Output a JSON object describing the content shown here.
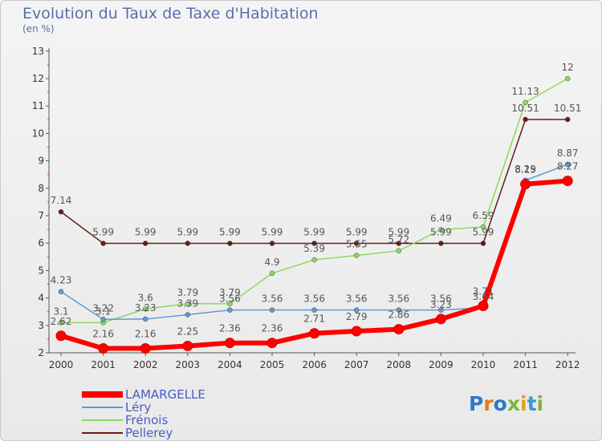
{
  "title": "Evolution du Taux de Taxe d'Habitation",
  "unit": "(en %)",
  "logo": "Proxiti",
  "chart_data": {
    "type": "line",
    "x": [
      "2000",
      "2001",
      "2002",
      "2003",
      "2004",
      "2005",
      "2006",
      "2007",
      "2008",
      "2009",
      "2010",
      "2011",
      "2012"
    ],
    "ylim": [
      2,
      13
    ],
    "yticks": [
      2,
      3,
      4,
      5,
      6,
      7,
      8,
      9,
      10,
      11,
      12,
      13
    ],
    "grid": false,
    "legend": "bottom-left",
    "series": [
      {
        "name": "LAMARGELLE",
        "color": "#ff0000",
        "values": [
          2.62,
          2.16,
          2.16,
          2.25,
          2.36,
          2.36,
          2.71,
          2.79,
          2.86,
          3.23,
          3.71,
          8.15,
          8.27
        ],
        "labels": [
          "2.62",
          "2.16",
          "2.16",
          "2.25",
          "2.36",
          "2.36",
          "2.71",
          "2.79",
          "2.86",
          "3.23",
          "3.71",
          "8.15",
          "8.27"
        ]
      },
      {
        "name": "Léry",
        "color": "#5c9bd1",
        "values": [
          4.23,
          3.22,
          3.23,
          3.39,
          3.56,
          3.56,
          3.56,
          3.56,
          3.56,
          3.56,
          3.64,
          8.29,
          8.87
        ],
        "labels": [
          "4.23",
          "3.22",
          "3.23",
          "3.39",
          "3.56",
          "3.56",
          "3.56",
          "3.56",
          "3.56",
          "3.56",
          "3.64",
          "8.29",
          "8.87"
        ]
      },
      {
        "name": "Frénois",
        "color": "#8ed85c",
        "values": [
          3.1,
          3.1,
          3.6,
          3.79,
          3.79,
          4.9,
          5.39,
          5.55,
          5.72,
          6.49,
          6.59,
          11.13,
          12
        ],
        "labels": [
          "3.1",
          "3.1",
          "3.6",
          "3.79",
          "3.79",
          "4.9",
          "5.39",
          "5.55",
          "5.72",
          "6.49",
          "6.59",
          "11.13",
          "12"
        ]
      },
      {
        "name": "Pellerey",
        "color": "#6b1a1a",
        "values": [
          7.14,
          5.99,
          5.99,
          5.99,
          5.99,
          5.99,
          5.99,
          5.99,
          5.99,
          5.99,
          5.99,
          10.51,
          10.51
        ],
        "labels": [
          "7.14",
          "5.99",
          "5.99",
          "5.99",
          "5.99",
          "5.99",
          "5.99",
          "5.99",
          "5.99",
          "5.99",
          "5.99",
          "10.51",
          "10.51"
        ]
      }
    ]
  }
}
